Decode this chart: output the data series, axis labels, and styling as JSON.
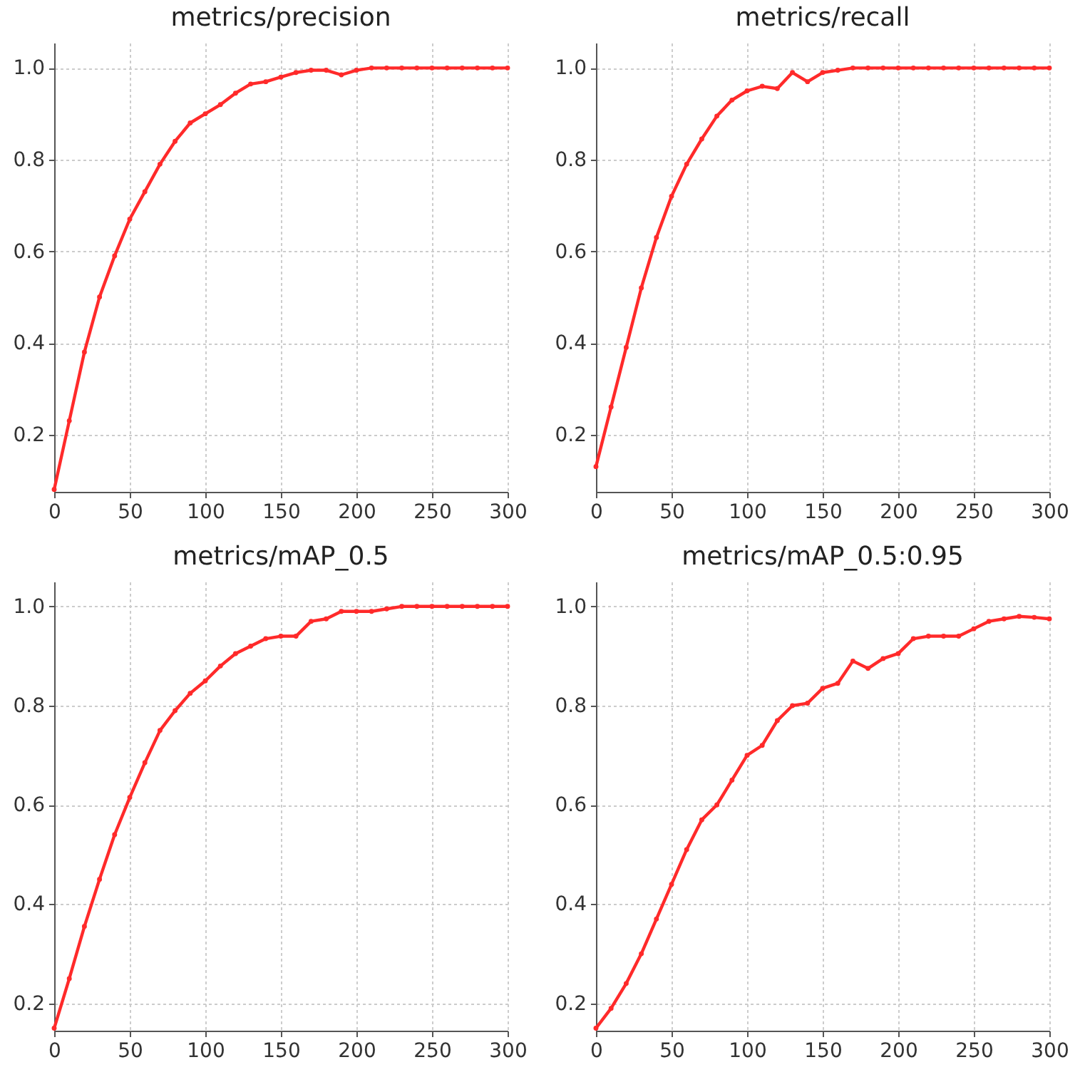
{
  "chart_data": [
    {
      "type": "line",
      "title": "metrics/precision",
      "x": [
        0,
        10,
        20,
        30,
        40,
        50,
        60,
        70,
        80,
        90,
        100,
        110,
        120,
        130,
        140,
        150,
        160,
        170,
        180,
        190,
        200,
        210,
        220,
        230,
        240,
        250,
        260,
        270,
        280,
        290,
        300
      ],
      "series": [
        {
          "color": "#ff2a2a",
          "values": [
            0.08,
            0.23,
            0.38,
            0.5,
            0.59,
            0.67,
            0.73,
            0.79,
            0.84,
            0.88,
            0.9,
            0.92,
            0.945,
            0.965,
            0.97,
            0.98,
            0.99,
            0.995,
            0.995,
            0.985,
            0.995,
            1.0,
            1.0,
            1.0,
            1.0,
            1.0,
            1.0,
            1.0,
            1.0,
            1.0,
            1.0
          ]
        }
      ],
      "xlim": [
        0,
        300
      ],
      "xticks": [
        0,
        50,
        100,
        150,
        200,
        250,
        300
      ],
      "ylim": [
        0.075,
        1.055
      ],
      "yticks": [
        {
          "value": 0.2,
          "label": "0.2"
        },
        {
          "value": 0.4,
          "label": "0.4"
        },
        {
          "value": 0.6,
          "label": "0.6"
        },
        {
          "value": 0.8,
          "label": "0.8"
        },
        {
          "value": 1.0,
          "label": "1.0"
        }
      ],
      "grid": true,
      "marker": "circle",
      "line_style": "solid",
      "legend": false
    },
    {
      "type": "line",
      "title": "metrics/recall",
      "x": [
        0,
        10,
        20,
        30,
        40,
        50,
        60,
        70,
        80,
        90,
        100,
        110,
        120,
        130,
        140,
        150,
        160,
        170,
        180,
        190,
        200,
        210,
        220,
        230,
        240,
        250,
        260,
        270,
        280,
        290,
        300
      ],
      "series": [
        {
          "color": "#ff2a2a",
          "values": [
            0.13,
            0.26,
            0.39,
            0.52,
            0.63,
            0.72,
            0.79,
            0.845,
            0.895,
            0.93,
            0.95,
            0.96,
            0.955,
            0.99,
            0.97,
            0.99,
            0.995,
            1.0,
            1.0,
            1.0,
            1.0,
            1.0,
            1.0,
            1.0,
            1.0,
            1.0,
            1.0,
            1.0,
            1.0,
            1.0,
            1.0
          ]
        }
      ],
      "xlim": [
        0,
        300
      ],
      "xticks": [
        0,
        50,
        100,
        150,
        200,
        250,
        300
      ],
      "ylim": [
        0.075,
        1.055
      ],
      "yticks": [
        {
          "value": 0.2,
          "label": "0.2"
        },
        {
          "value": 0.4,
          "label": "0.4"
        },
        {
          "value": 0.6,
          "label": "0.6"
        },
        {
          "value": 0.8,
          "label": "0.8"
        },
        {
          "value": 1.0,
          "label": "1.0"
        }
      ],
      "grid": true,
      "marker": "circle",
      "line_style": "solid",
      "legend": false
    },
    {
      "type": "line",
      "title": "metrics/mAP_0.5",
      "x": [
        0,
        10,
        20,
        30,
        40,
        50,
        60,
        70,
        80,
        90,
        100,
        110,
        120,
        130,
        140,
        150,
        160,
        170,
        180,
        190,
        200,
        210,
        220,
        230,
        240,
        250,
        260,
        270,
        280,
        290,
        300
      ],
      "series": [
        {
          "color": "#ff2a2a",
          "values": [
            0.15,
            0.25,
            0.355,
            0.45,
            0.54,
            0.615,
            0.685,
            0.75,
            0.79,
            0.825,
            0.85,
            0.88,
            0.905,
            0.92,
            0.935,
            0.94,
            0.94,
            0.97,
            0.975,
            0.99,
            0.99,
            0.99,
            0.995,
            1.0,
            1.0,
            1.0,
            1.0,
            1.0,
            1.0,
            1.0,
            1.0
          ]
        }
      ],
      "xlim": [
        0,
        300
      ],
      "xticks": [
        0,
        50,
        100,
        150,
        200,
        250,
        300
      ],
      "ylim": [
        0.145,
        1.05
      ],
      "yticks": [
        {
          "value": 0.2,
          "label": "0.2"
        },
        {
          "value": 0.4,
          "label": "0.4"
        },
        {
          "value": 0.6,
          "label": "0.6"
        },
        {
          "value": 0.8,
          "label": "0.8"
        },
        {
          "value": 1.0,
          "label": "1.0"
        }
      ],
      "grid": true,
      "marker": "circle",
      "line_style": "solid",
      "legend": false
    },
    {
      "type": "line",
      "title": "metrics/mAP_0.5:0.95",
      "x": [
        0,
        10,
        20,
        30,
        40,
        50,
        60,
        70,
        80,
        90,
        100,
        110,
        120,
        130,
        140,
        150,
        160,
        170,
        180,
        190,
        200,
        210,
        220,
        230,
        240,
        250,
        260,
        270,
        280,
        290,
        300
      ],
      "series": [
        {
          "color": "#ff2a2a",
          "values": [
            0.15,
            0.19,
            0.24,
            0.3,
            0.37,
            0.44,
            0.51,
            0.57,
            0.6,
            0.65,
            0.7,
            0.72,
            0.77,
            0.8,
            0.805,
            0.835,
            0.845,
            0.89,
            0.875,
            0.895,
            0.905,
            0.935,
            0.94,
            0.94,
            0.94,
            0.955,
            0.97,
            0.975,
            0.98,
            0.978,
            0.975
          ]
        }
      ],
      "xlim": [
        0,
        300
      ],
      "xticks": [
        0,
        50,
        100,
        150,
        200,
        250,
        300
      ],
      "ylim": [
        0.145,
        1.05
      ],
      "yticks": [
        {
          "value": 0.2,
          "label": "0.2"
        },
        {
          "value": 0.4,
          "label": "0.4"
        },
        {
          "value": 0.6,
          "label": "0.6"
        },
        {
          "value": 0.8,
          "label": "0.8"
        },
        {
          "value": 1.0,
          "label": "1.0"
        }
      ],
      "grid": true,
      "marker": "circle",
      "line_style": "solid",
      "legend": false
    }
  ]
}
